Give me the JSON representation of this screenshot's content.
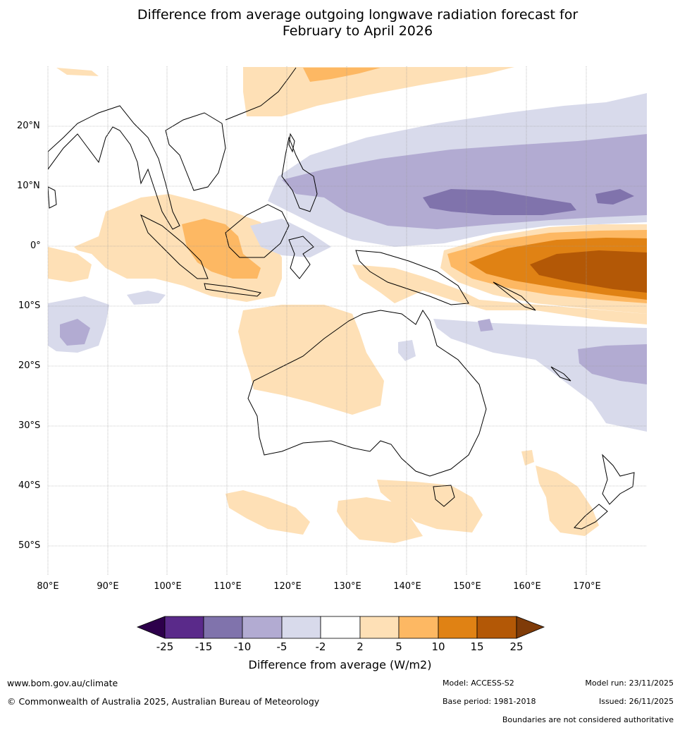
{
  "title": {
    "line1": "Difference from average outgoing longwave radiation forecast for",
    "line2": "February to April 2026"
  },
  "map": {
    "lat_labels": [
      "20°N",
      "10°N",
      "0°",
      "10°S",
      "20°S",
      "30°S",
      "40°S",
      "50°S"
    ],
    "lon_labels": [
      "80°E",
      "90°E",
      "100°E",
      "110°E",
      "120°E",
      "130°E",
      "140°E",
      "150°E",
      "160°E",
      "170°E"
    ]
  },
  "legend": {
    "ticks": [
      "-25",
      "-15",
      "-10",
      "-5",
      "-2",
      "2",
      "5",
      "10",
      "15",
      "25"
    ],
    "colors": [
      "#5a2a8a",
      "#8073ac",
      "#b2abd2",
      "#d8daeb",
      "#ffffff",
      "#fee0b6",
      "#fdb863",
      "#e08214",
      "#b35806"
    ],
    "extend_low_color": "#2d004b",
    "extend_high_color": "#7f3b08",
    "title": "Difference from average (W/m2)"
  },
  "footer": {
    "website": "www.bom.gov.au/climate",
    "copyright": "© Commonwealth of Australia 2025, Australian Bureau of Meteorology",
    "model": "Model: ACCESS-S2",
    "base_period": "Base period: 1981-2018",
    "model_run": "Model run: 23/11/2025",
    "issued": "Issued: 26/11/2025",
    "disclaimer": "Boundaries are not considered authoritative"
  }
}
